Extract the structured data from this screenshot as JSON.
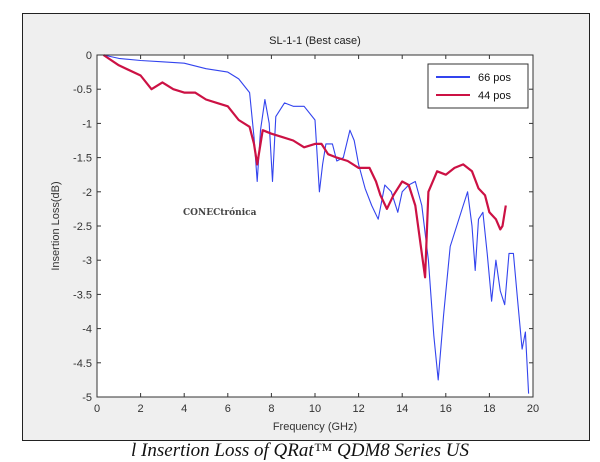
{
  "watermark": "CONECtrónica",
  "caption": "l Insertion Loss of QRat™ QDM8 Series US",
  "colors": {
    "series_66": "#3344ee",
    "series_44": "#cc1144",
    "plot_bg": "#ffffff",
    "figure_bg": "#efefef"
  },
  "chart_data": {
    "type": "line",
    "title": "SL-1-1 (Best case)",
    "xlabel": "Frequency (GHz)",
    "ylabel": "Insertion Loss(dB)",
    "xlim": [
      0,
      20
    ],
    "ylim": [
      -5,
      0
    ],
    "xticks": [
      0,
      2,
      4,
      6,
      8,
      10,
      12,
      14,
      16,
      18,
      20
    ],
    "xtick_labels": [
      "0",
      "2",
      "4",
      "6",
      "8",
      "10",
      "12",
      "14",
      "16",
      "18",
      "20"
    ],
    "yticks": [
      0,
      -0.5,
      -1,
      -1.5,
      -2,
      -2.5,
      -3,
      -3.5,
      -4,
      -4.5,
      -5
    ],
    "ytick_labels": [
      "0",
      "-0.5",
      "-1",
      "-1.5",
      "-2",
      "-2.5",
      "-3",
      "-3.5",
      "-4",
      "-4.5",
      "-5"
    ],
    "grid": false,
    "legend_position": "top-right",
    "series": [
      {
        "name": "66 pos",
        "color": "#3344ee",
        "x": [
          0.3,
          1,
          2,
          3,
          4,
          5,
          6,
          6.5,
          7,
          7.2,
          7.35,
          7.5,
          7.7,
          7.9,
          8.05,
          8.2,
          8.6,
          9,
          9.5,
          10,
          10.2,
          10.35,
          10.5,
          10.8,
          11,
          11.3,
          11.6,
          11.8,
          12,
          12.3,
          12.6,
          12.9,
          13.2,
          13.5,
          13.8,
          14,
          14.3,
          14.6,
          14.9,
          15.2,
          15.45,
          15.65,
          15.9,
          16.2,
          16.5,
          16.8,
          17,
          17.2,
          17.35,
          17.5,
          17.7,
          17.9,
          18.1,
          18.3,
          18.5,
          18.7,
          18.9,
          19.1,
          19.3,
          19.5,
          19.65,
          19.8
        ],
        "y": [
          0,
          -0.05,
          -0.08,
          -0.1,
          -0.12,
          -0.2,
          -0.25,
          -0.35,
          -0.55,
          -1.2,
          -1.85,
          -1.1,
          -0.65,
          -1.0,
          -1.85,
          -0.9,
          -0.7,
          -0.75,
          -0.75,
          -0.95,
          -2.0,
          -1.6,
          -1.3,
          -1.3,
          -1.55,
          -1.5,
          -1.1,
          -1.25,
          -1.6,
          -1.95,
          -2.2,
          -2.4,
          -1.9,
          -2.0,
          -2.3,
          -2.0,
          -1.9,
          -1.85,
          -2.2,
          -3.0,
          -4.1,
          -4.75,
          -3.8,
          -2.8,
          -2.5,
          -2.2,
          -2.0,
          -2.5,
          -3.15,
          -2.4,
          -2.3,
          -2.9,
          -3.6,
          -3.0,
          -3.45,
          -3.65,
          -2.9,
          -2.9,
          -3.6,
          -4.3,
          -4.05,
          -4.95
        ]
      },
      {
        "name": "44 pos",
        "color": "#cc1144",
        "x": [
          0.3,
          1,
          2,
          2.5,
          3,
          3.5,
          4,
          4.5,
          5,
          5.5,
          6,
          6.5,
          7,
          7.2,
          7.35,
          7.6,
          8,
          8.5,
          9,
          9.5,
          10,
          10.3,
          10.6,
          11,
          11.5,
          12,
          12.5,
          12.8,
          13,
          13.3,
          13.6,
          14,
          14.3,
          14.6,
          14.9,
          15.05,
          15.2,
          15.6,
          16,
          16.4,
          16.8,
          17.2,
          17.5,
          17.8,
          18,
          18.3,
          18.5,
          18.6,
          18.75
        ],
        "y": [
          0,
          -0.15,
          -0.3,
          -0.5,
          -0.4,
          -0.5,
          -0.55,
          -0.55,
          -0.65,
          -0.7,
          -0.75,
          -0.95,
          -1.05,
          -1.3,
          -1.6,
          -1.1,
          -1.15,
          -1.2,
          -1.25,
          -1.35,
          -1.3,
          -1.3,
          -1.45,
          -1.5,
          -1.55,
          -1.65,
          -1.65,
          -1.85,
          -2.05,
          -2.25,
          -2.05,
          -1.85,
          -1.9,
          -2.2,
          -2.9,
          -3.25,
          -2.0,
          -1.7,
          -1.75,
          -1.65,
          -1.6,
          -1.7,
          -1.95,
          -2.05,
          -2.3,
          -2.4,
          -2.55,
          -2.5,
          -2.2
        ]
      }
    ]
  }
}
